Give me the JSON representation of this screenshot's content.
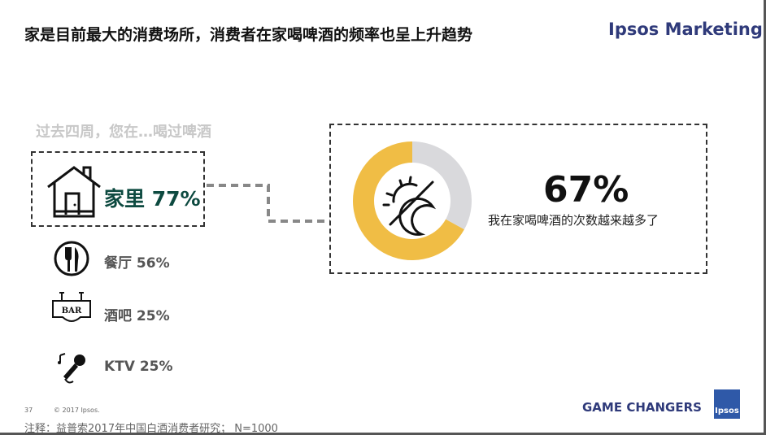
{
  "header": {
    "title": "家是目前最大的消费场所，消费者在家喝啤酒的频率也呈上升趋势",
    "brand": "Ipsos Marketing"
  },
  "question": "过去四周，您在…喝过啤酒",
  "locations": [
    {
      "label": "家里 77%",
      "icon": "house-icon"
    },
    {
      "label": "餐厅 56%",
      "icon": "fork-knife-icon"
    },
    {
      "label": "酒吧 25%",
      "icon": "bar-sign-icon"
    },
    {
      "label": "KTV 25%",
      "icon": "microphone-icon"
    }
  ],
  "highlight": {
    "percent_label": "67%",
    "value": 67,
    "description": "我在家喝啤酒的次数越来越多了",
    "colors": {
      "filled": "#f0bd45",
      "remaining": "#d9d9dc"
    },
    "icon": "day-night-icon"
  },
  "footer": {
    "page": "37",
    "copyright": "© 2017 Ipsos.",
    "note": "注释：益普索2017年中国白酒消费者研究； N=1000",
    "tagline": "GAME CHANGERS",
    "logo": "Ipsos"
  }
}
